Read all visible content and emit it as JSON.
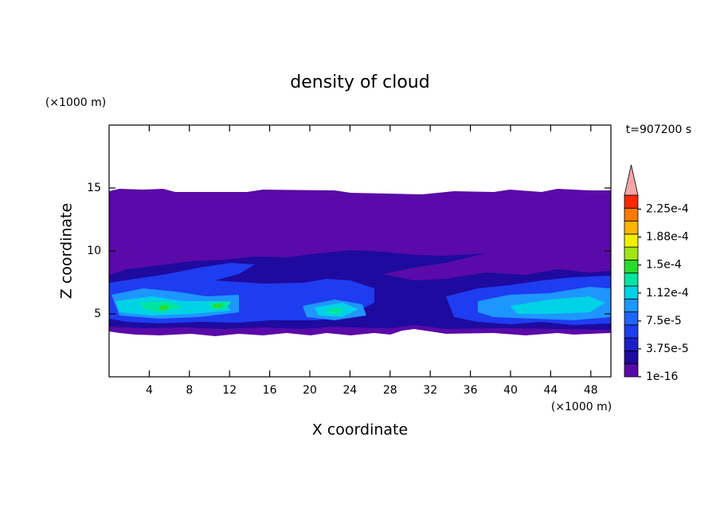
{
  "chart_data": {
    "type": "contour",
    "title": "density of cloud",
    "x_label": "X coordinate",
    "y_label": "Z coordinate",
    "x_unit": "(×1000 m)",
    "y_unit": "(×1000 m)",
    "annotation": "t=907200 s",
    "xlim": [
      0,
      50
    ],
    "ylim": [
      0,
      20
    ],
    "xticks": [
      4,
      8,
      12,
      16,
      20,
      24,
      28,
      32,
      36,
      40,
      44,
      48
    ],
    "yticks": [
      5,
      10,
      15
    ],
    "colorbar": {
      "lim": [
        1e-16,
        0.00024375
      ],
      "ticks": [
        {
          "value": 1e-16,
          "label": "1e-16"
        },
        {
          "value": 3.75e-05,
          "label": "3.75e-5"
        },
        {
          "value": 7.5e-05,
          "label": "7.5e-5"
        },
        {
          "value": 0.0001125,
          "label": "1.12e-4"
        },
        {
          "value": 0.00015,
          "label": "1.5e-4"
        },
        {
          "value": 0.0001875,
          "label": "1.88e-4"
        },
        {
          "value": 0.000225,
          "label": "2.25e-4"
        }
      ],
      "colors": [
        "#5a0aa8",
        "#1e0a9e",
        "#1e1ec8",
        "#1e3cf0",
        "#1e64ff",
        "#1e96ff",
        "#00d2e6",
        "#00e6a0",
        "#28dc28",
        "#a0e614",
        "#f0f000",
        "#ffb400",
        "#ff7800",
        "#ff2800"
      ],
      "extend_color": "#f4a6a6"
    }
  }
}
